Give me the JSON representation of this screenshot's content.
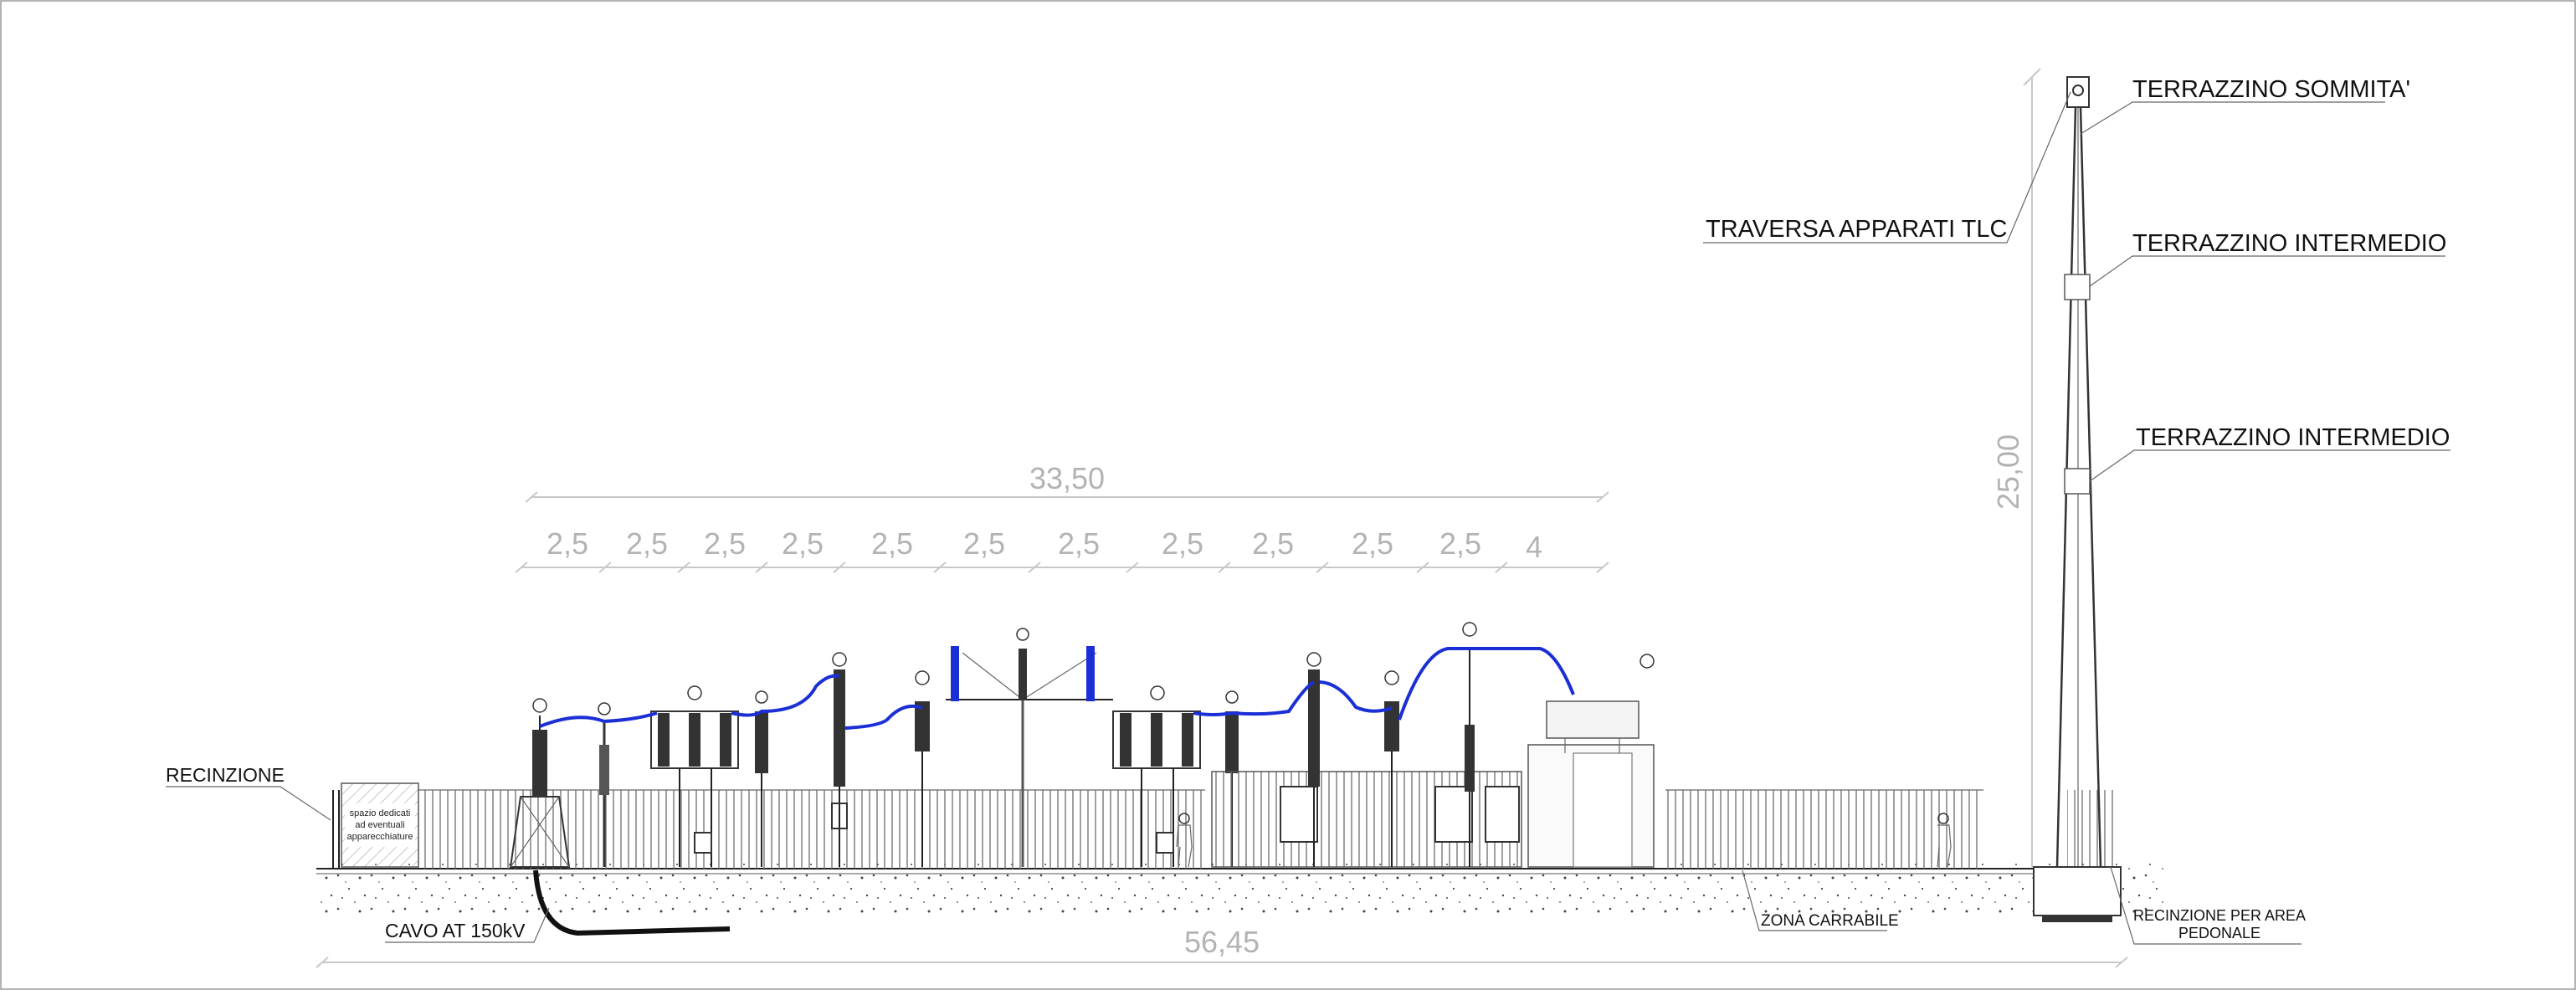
{
  "labels": {
    "terrazzino_sommita": "TERRAZZINO SOMMITA'",
    "traversa_tlc": "TRAVERSA APPARATI TLC",
    "terrazzino_intermedio_1": "TERRAZZINO INTERMEDIO",
    "terrazzino_intermedio_2": "TERRAZZINO INTERMEDIO",
    "recinzione": "RECINZIONE",
    "cavo_at": "CAVO AT 150kV",
    "zona_carrabile": "ZONA CARRABILE",
    "recinzione_pedonale_1": "RECINZIONE PER AREA",
    "recinzione_pedonale_2": "PEDONALE",
    "spazio_1": "spazio dedicati",
    "spazio_2": "ad eventuali",
    "spazio_3": "apparecchiature"
  },
  "dimensions": {
    "overall_top": "33,50",
    "overall_bottom": "56,45",
    "tower_height": "25,00",
    "bays": [
      "2,5",
      "2,5",
      "2,5",
      "2,5",
      "2,5",
      "2,5",
      "2,5",
      "2,5",
      "2,5",
      "2,5",
      "2,5",
      "4"
    ]
  },
  "colors": {
    "conductor": "#1b2fd6",
    "line": "#222222",
    "dimension": "#b3b3b3"
  }
}
